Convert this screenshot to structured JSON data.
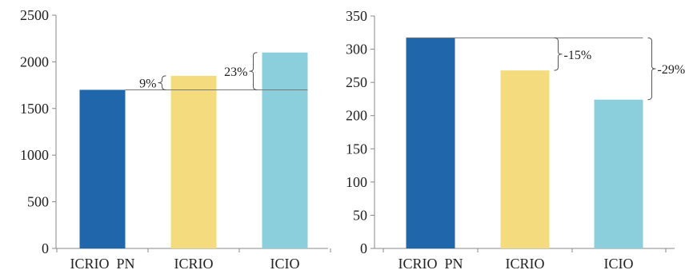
{
  "chart_data": [
    {
      "type": "bar",
      "categories": [
        "ICRIO  PN",
        "ICRIO",
        "ICIO"
      ],
      "values": [
        1700,
        1850,
        2100
      ],
      "ylim": [
        0,
        2500
      ],
      "yticks": [
        0,
        500,
        1000,
        1500,
        2000,
        2500
      ],
      "grid": false,
      "colors": [
        "#1f66ab",
        "#f4dc7e",
        "#8ccfdc"
      ],
      "reference_line": 1700,
      "annotations": [
        {
          "text": "9%",
          "category": "ICRIO",
          "from": 1700,
          "to": 1850
        },
        {
          "text": "23%",
          "category": "ICIO",
          "from": 1700,
          "to": 2100
        }
      ]
    },
    {
      "type": "bar",
      "categories": [
        "ICRIO  PN",
        "ICRIO",
        "ICIO"
      ],
      "values": [
        317,
        268,
        224
      ],
      "ylim": [
        0,
        350
      ],
      "yticks": [
        0,
        50,
        100,
        150,
        200,
        250,
        300,
        350
      ],
      "grid": false,
      "colors": [
        "#1f66ab",
        "#f4dc7e",
        "#8ccfdc"
      ],
      "reference_line": 317,
      "annotations": [
        {
          "text": "-15%",
          "category": "ICRIO",
          "from": 268,
          "to": 317
        },
        {
          "text": "-29%",
          "category": "ICIO",
          "from": 224,
          "to": 317
        }
      ]
    }
  ]
}
